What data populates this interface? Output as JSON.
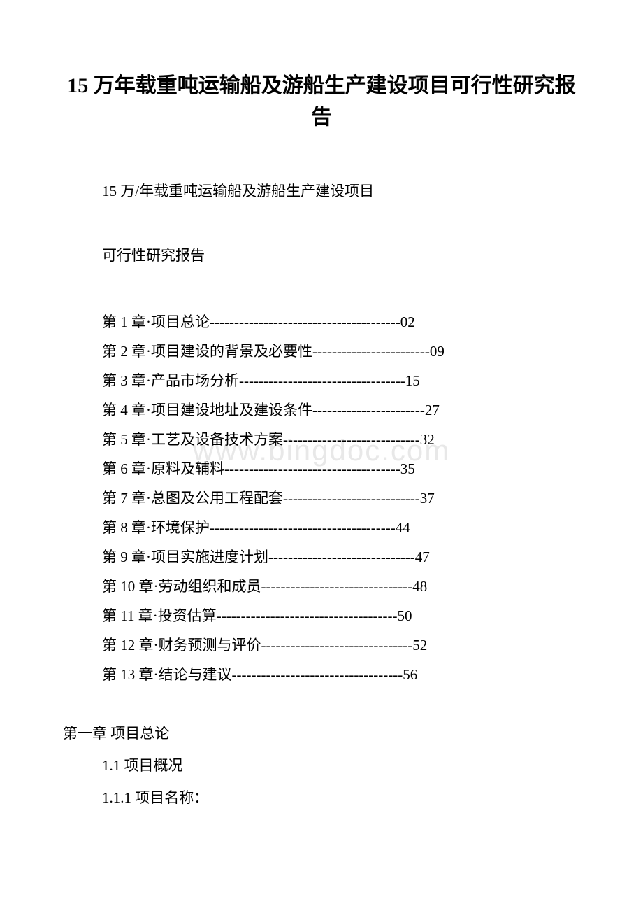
{
  "document": {
    "title": "15 万年载重吨运输船及游船生产建设项目可行性研究报告",
    "subtitle_line1": "15 万/年载重吨运输船及游船生产建设项目",
    "subtitle_line2": "可行性研究报告",
    "watermark_text": "www.bingdoc.com",
    "title_fontsize": 30,
    "body_fontsize": 21,
    "text_color": "#000000",
    "background_color": "#ffffff",
    "watermark_color": "#e8e8e8"
  },
  "toc": {
    "entries": [
      {
        "text": "第 1 章·项目总论---------------------------------------02"
      },
      {
        "text": "第 2 章·项目建设的背景及必要性------------------------09"
      },
      {
        "text": "第 3 章·产品市场分析----------------------------------15"
      },
      {
        "text": "第 4 章·项目建设地址及建设条件-----------------------27"
      },
      {
        "text": "第 5 章·工艺及设备技术方案----------------------------32"
      },
      {
        "text": "第 6 章·原料及辅料------------------------------------35"
      },
      {
        "text": "第 7 章·总图及公用工程配套----------------------------37"
      },
      {
        "text": "第 8 章·环境保护--------------------------------------44"
      },
      {
        "text": "第 9 章·项目实施进度计划------------------------------47"
      },
      {
        "text": "第 10 章·劳动组织和成员-------------------------------48"
      },
      {
        "text": "第 11 章·投资估算-------------------------------------50"
      },
      {
        "text": "第 12 章·财务预测与评价-------------------------------52"
      },
      {
        "text": "第 13 章·结论与建议-----------------------------------56"
      }
    ]
  },
  "body": {
    "chapter1_heading": "第一章 项目总论",
    "section_1_1": "1.1 项目概况",
    "section_1_1_1": "1.1.1 项目名称："
  }
}
